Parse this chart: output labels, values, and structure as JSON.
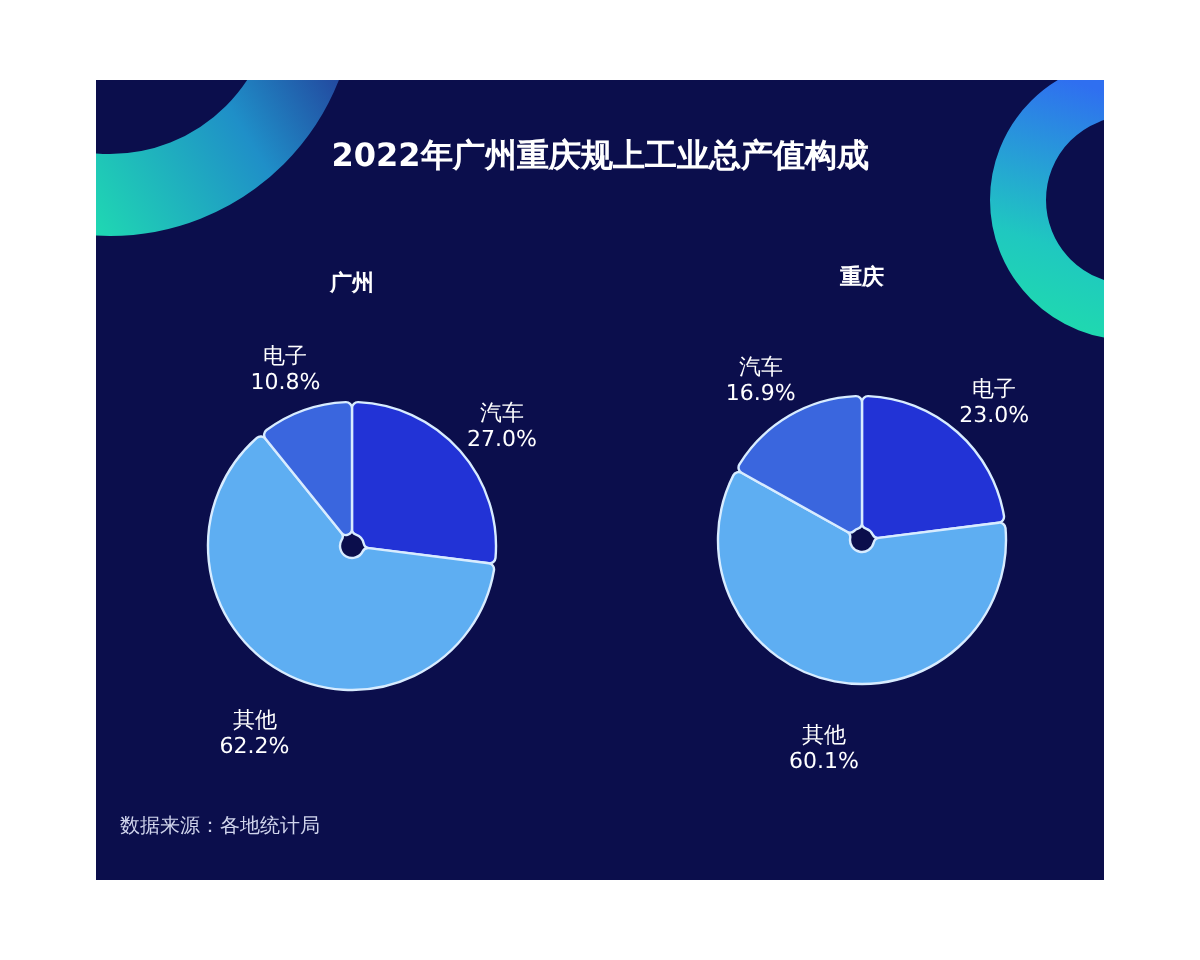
{
  "chart_data": [
    {
      "type": "other",
      "title": "2022年广州重庆规上工业总产值构成",
      "annotations": [
        "数据来源：各地统计局"
      ]
    },
    {
      "type": "pie",
      "title": "广州",
      "categories": [
        "汽车",
        "其他",
        "电子"
      ],
      "values": [
        27.0,
        62.2,
        10.8
      ],
      "colors": [
        "#2233d6",
        "#5eaef2",
        "#3a66de"
      ],
      "value_labels": [
        "27.0%",
        "62.2%",
        "10.8%"
      ]
    },
    {
      "type": "pie",
      "title": "重庆",
      "categories": [
        "电子",
        "其他",
        "汽车"
      ],
      "values": [
        23.0,
        60.1,
        16.9
      ],
      "colors": [
        "#2233d6",
        "#5eaef2",
        "#3a66de"
      ],
      "value_labels": [
        "23.0%",
        "60.1%",
        "16.9%"
      ]
    }
  ]
}
